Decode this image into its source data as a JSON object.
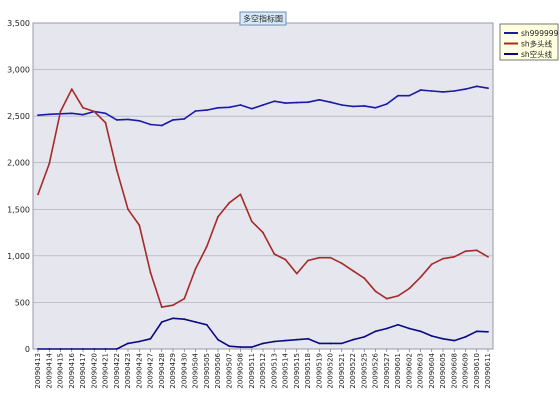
{
  "chart_data": {
    "type": "line",
    "title": "多空指标图",
    "xlabel": "",
    "ylabel": "",
    "ylim": [
      0,
      3500
    ],
    "yticks": [
      "0",
      "500",
      "1,000",
      "1,500",
      "2,000",
      "2,500",
      "3,000",
      "3,500"
    ],
    "ytick_values": [
      0,
      500,
      1000,
      1500,
      2000,
      2500,
      3000,
      3500
    ],
    "grid": true,
    "legend_position": "top-right",
    "categories": [
      "20090413",
      "20090414",
      "20090415",
      "20090416",
      "20090417",
      "20090420",
      "20090421",
      "20090422",
      "20090423",
      "20090424",
      "20090427",
      "20090428",
      "20090429",
      "20090430",
      "20090504",
      "20090505",
      "20090506",
      "20090507",
      "20090508",
      "20090511",
      "20090512",
      "20090513",
      "20090514",
      "20090515",
      "20090518",
      "20090519",
      "20090520",
      "20090521",
      "20090522",
      "20090525",
      "20090526",
      "20090527",
      "20090601",
      "20090602",
      "20090603",
      "20090604",
      "20090605",
      "20090608",
      "20090609",
      "20090610",
      "20090611"
    ],
    "series": [
      {
        "name": "sh999999",
        "color": "#1a1aa8",
        "values": [
          2510,
          2520,
          2525,
          2530,
          2515,
          2550,
          2530,
          2460,
          2465,
          2450,
          2410,
          2400,
          2460,
          2470,
          2555,
          2565,
          2590,
          2595,
          2620,
          2580,
          2620,
          2660,
          2640,
          2645,
          2650,
          2675,
          2650,
          2620,
          2605,
          2610,
          2590,
          2630,
          2720,
          2720,
          2780,
          2770,
          2760,
          2770,
          2790,
          2820,
          2800
        ]
      },
      {
        "name": "sh多头线",
        "color": "#a52a2a",
        "values": [
          1660,
          1990,
          2550,
          2790,
          2590,
          2550,
          2430,
          1920,
          1500,
          1330,
          820,
          450,
          470,
          540,
          860,
          1100,
          1420,
          1570,
          1660,
          1370,
          1250,
          1020,
          960,
          810,
          950,
          980,
          980,
          920,
          840,
          760,
          620,
          540,
          570,
          650,
          770,
          910,
          970,
          990,
          1050,
          1060,
          990
        ]
      },
      {
        "name": "sh空头线",
        "color": "#0a0a80",
        "values": [
          0,
          0,
          0,
          0,
          0,
          0,
          0,
          0,
          60,
          80,
          110,
          290,
          330,
          320,
          290,
          260,
          100,
          30,
          20,
          20,
          60,
          80,
          90,
          100,
          110,
          60,
          60,
          60,
          100,
          130,
          190,
          220,
          260,
          220,
          190,
          140,
          110,
          90,
          130,
          190,
          185
        ]
      }
    ]
  }
}
